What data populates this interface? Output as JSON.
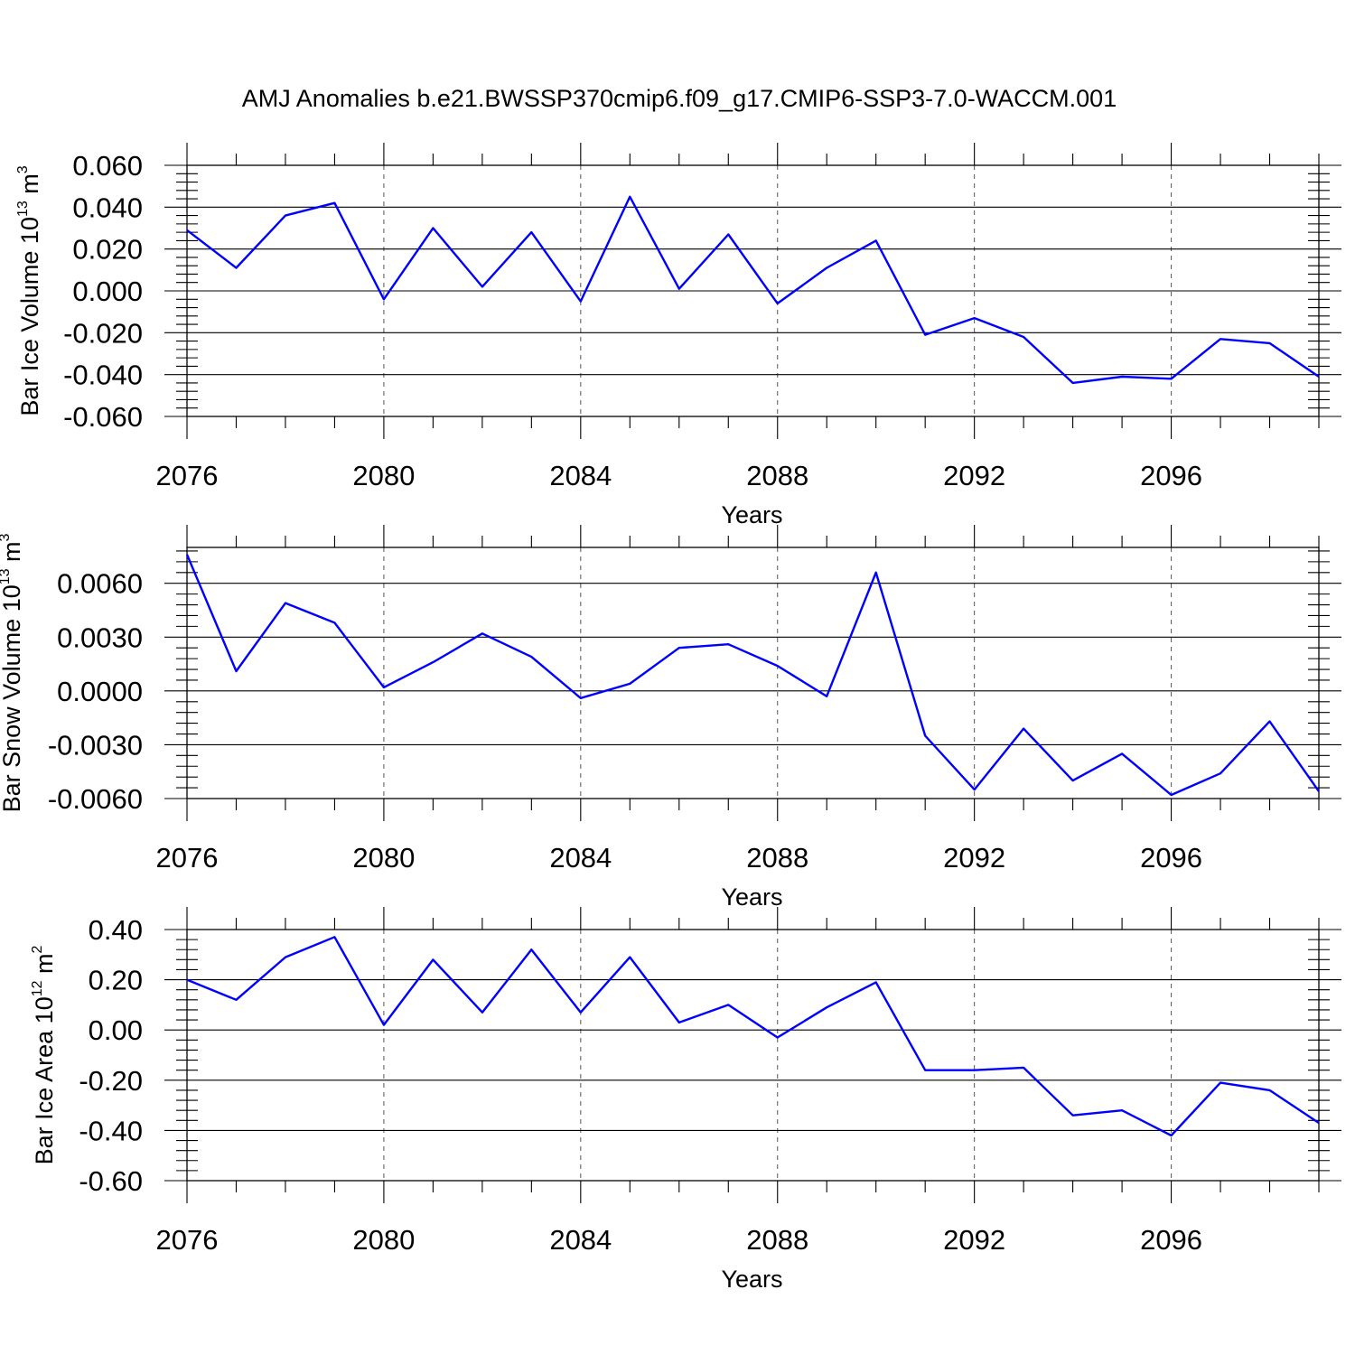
{
  "title": "AMJ Anomalies b.e21.BWSSP370cmip6.f09_g17.CMIP6-SSP3-7.0-WACCM.001",
  "line_color": "#0000ff",
  "chart_data": [
    {
      "type": "line",
      "xlabel": "Years",
      "ylabel_main": "Bar Ice Volume 10",
      "ylabel_sup": "13",
      "ylabel_unit": " m",
      "ylabel_unit_sup": "3",
      "x": [
        2076,
        2077,
        2078,
        2079,
        2080,
        2081,
        2082,
        2083,
        2084,
        2085,
        2086,
        2087,
        2088,
        2089,
        2090,
        2091,
        2092,
        2093,
        2094,
        2095,
        2096,
        2097,
        2098,
        2099
      ],
      "values": [
        0.029,
        0.011,
        0.036,
        0.042,
        -0.004,
        0.03,
        0.002,
        0.028,
        -0.005,
        0.045,
        0.001,
        0.027,
        -0.006,
        0.011,
        0.024,
        -0.021,
        -0.013,
        -0.022,
        -0.044,
        -0.041,
        -0.042,
        -0.023,
        -0.025,
        -0.041
      ],
      "xlim": [
        2076,
        2099
      ],
      "ylim": [
        -0.06,
        0.06
      ],
      "xticks": [
        2076,
        2080,
        2084,
        2088,
        2092,
        2096
      ],
      "xtick_labels": [
        "2076",
        "2080",
        "2084",
        "2088",
        "2092",
        "2096"
      ],
      "yticks": [
        -0.06,
        -0.04,
        -0.02,
        0.0,
        0.02,
        0.04,
        0.06
      ],
      "ytick_labels": [
        "-0.060",
        "-0.040",
        "-0.020",
        "0.000",
        "0.020",
        "0.040",
        "0.060"
      ],
      "grid": "vertical dashed at major x ticks"
    },
    {
      "type": "line",
      "xlabel": "Years",
      "ylabel_main": "Bar Snow Volume 10",
      "ylabel_sup": "13",
      "ylabel_unit": " m",
      "ylabel_unit_sup": "3",
      "x": [
        2076,
        2077,
        2078,
        2079,
        2080,
        2081,
        2082,
        2083,
        2084,
        2085,
        2086,
        2087,
        2088,
        2089,
        2090,
        2091,
        2092,
        2093,
        2094,
        2095,
        2096,
        2097,
        2098,
        2099
      ],
      "values": [
        0.0076,
        0.0011,
        0.0049,
        0.0038,
        0.0002,
        0.0016,
        0.0032,
        0.0019,
        -0.0004,
        0.0004,
        0.0024,
        0.0026,
        0.0014,
        -0.0003,
        0.0066,
        -0.0025,
        -0.0055,
        -0.0021,
        -0.005,
        -0.0035,
        -0.0058,
        -0.0046,
        -0.0017,
        -0.0056
      ],
      "xlim": [
        2076,
        2099
      ],
      "ylim": [
        -0.006,
        0.008
      ],
      "xticks": [
        2076,
        2080,
        2084,
        2088,
        2092,
        2096
      ],
      "xtick_labels": [
        "2076",
        "2080",
        "2084",
        "2088",
        "2092",
        "2096"
      ],
      "yticks": [
        -0.006,
        -0.003,
        0.0,
        0.003,
        0.006
      ],
      "ytick_labels": [
        "-0.0060",
        "-0.0030",
        "0.0000",
        "0.0030",
        "0.0060"
      ],
      "grid": "vertical dashed at major x ticks"
    },
    {
      "type": "line",
      "xlabel": "Years",
      "ylabel_main": "Bar Ice Area 10",
      "ylabel_sup": "12",
      "ylabel_unit": " m",
      "ylabel_unit_sup": "2",
      "x": [
        2076,
        2077,
        2078,
        2079,
        2080,
        2081,
        2082,
        2083,
        2084,
        2085,
        2086,
        2087,
        2088,
        2089,
        2090,
        2091,
        2092,
        2093,
        2094,
        2095,
        2096,
        2097,
        2098,
        2099
      ],
      "values": [
        0.2,
        0.12,
        0.29,
        0.37,
        0.02,
        0.28,
        0.07,
        0.32,
        0.07,
        0.29,
        0.03,
        0.1,
        -0.03,
        0.09,
        0.19,
        -0.16,
        -0.16,
        -0.15,
        -0.34,
        -0.32,
        -0.42,
        -0.21,
        -0.24,
        -0.37
      ],
      "xlim": [
        2076,
        2099
      ],
      "ylim": [
        -0.6,
        0.4
      ],
      "xticks": [
        2076,
        2080,
        2084,
        2088,
        2092,
        2096
      ],
      "xtick_labels": [
        "2076",
        "2080",
        "2084",
        "2088",
        "2092",
        "2096"
      ],
      "yticks": [
        -0.6,
        -0.4,
        -0.2,
        0.0,
        0.2,
        0.4
      ],
      "ytick_labels": [
        "-0.60",
        "-0.40",
        "-0.20",
        "0.00",
        "0.20",
        "0.40"
      ],
      "grid": "vertical dashed at major x ticks"
    }
  ]
}
